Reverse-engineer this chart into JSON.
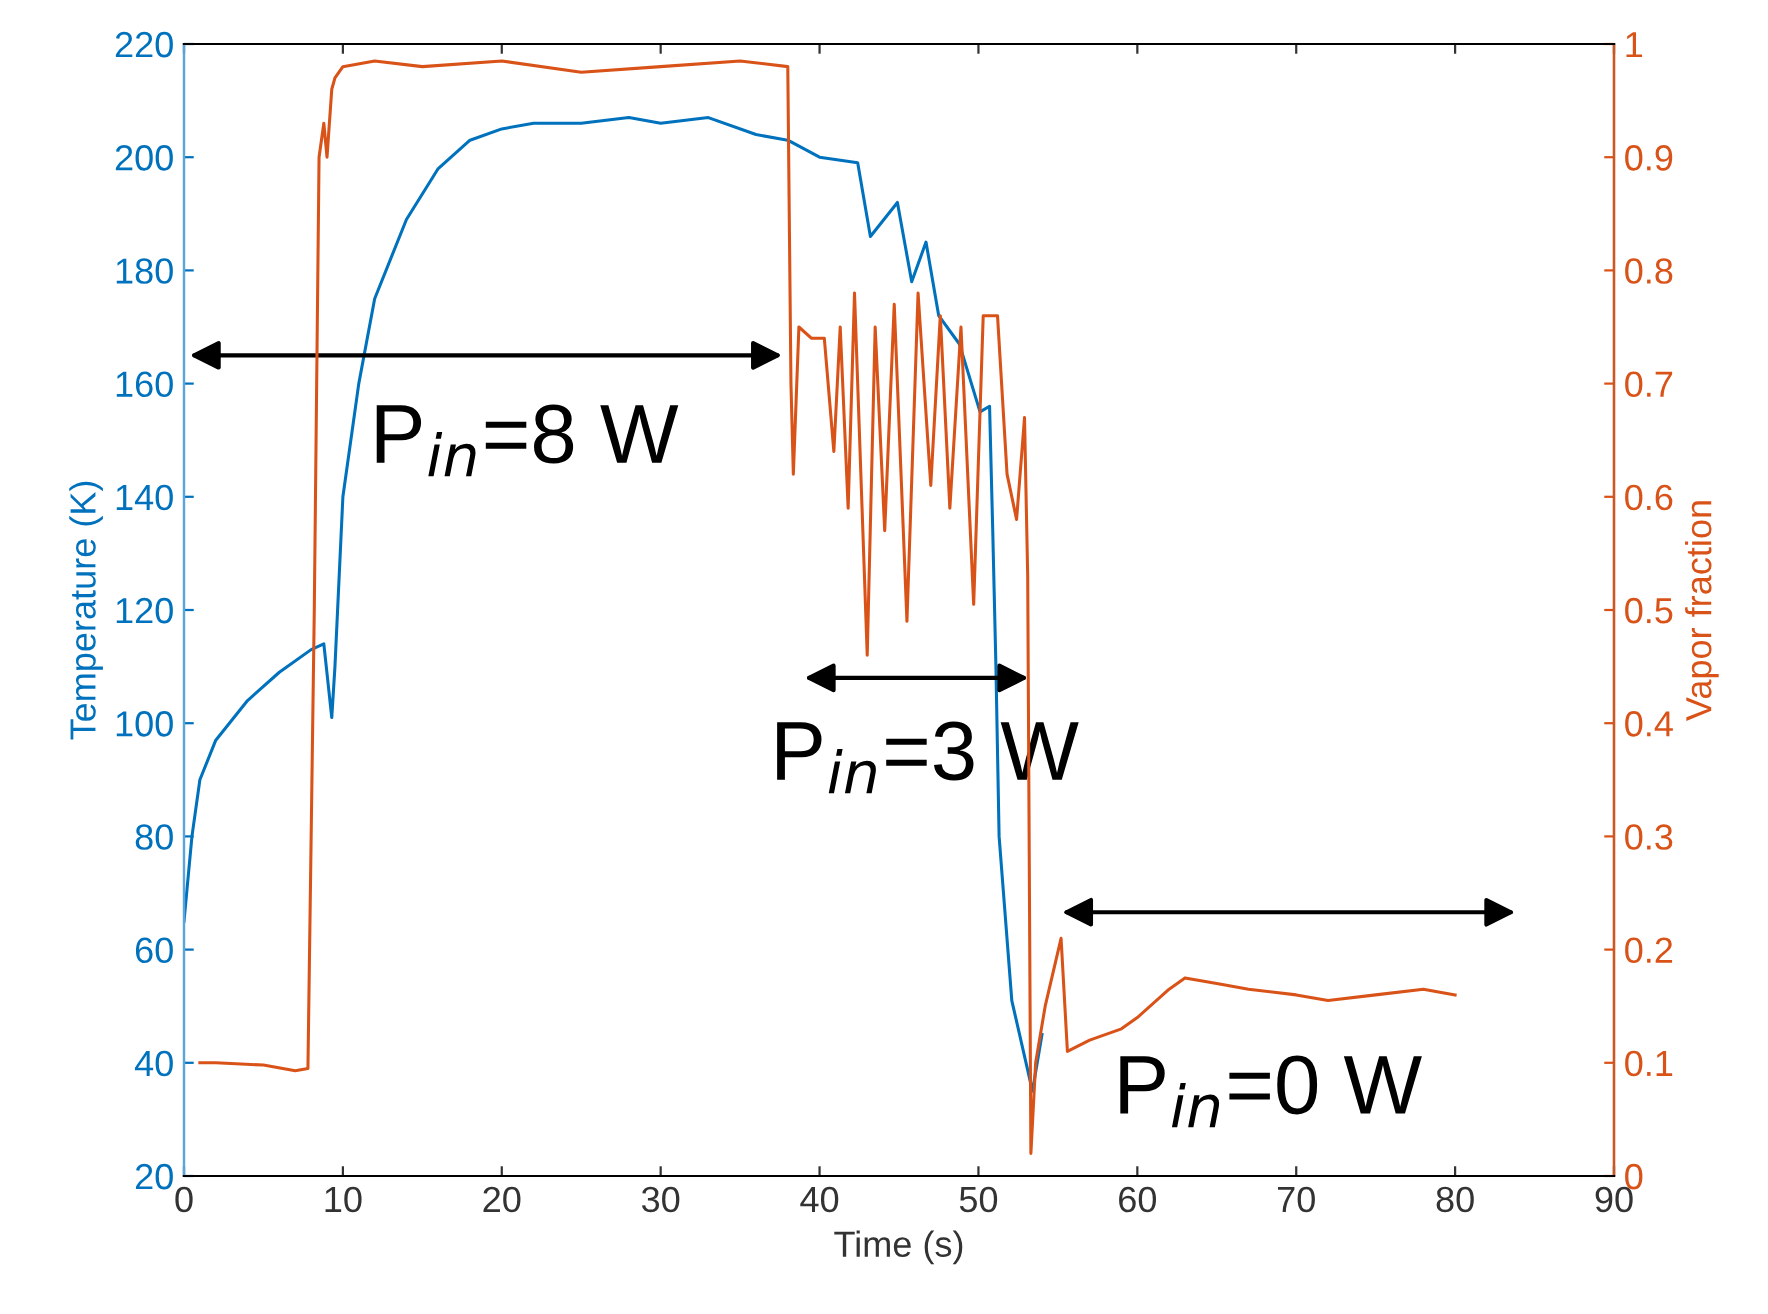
{
  "chart_data": {
    "type": "line",
    "xlabel": "Time (s)",
    "ylabel": "Temperature (K)",
    "y2label": "Vapor fraction",
    "xlim": [
      0,
      90
    ],
    "xticks": [
      0,
      10,
      20,
      30,
      40,
      50,
      60,
      70,
      80,
      90
    ],
    "ylim": [
      20,
      220
    ],
    "yticks": [
      20,
      40,
      60,
      80,
      100,
      120,
      140,
      160,
      180,
      200,
      220
    ],
    "y2lim": [
      0,
      1
    ],
    "y2ticks": [
      0,
      0.1,
      0.2,
      0.3,
      0.4,
      0.5,
      0.6,
      0.7,
      0.8,
      0.9,
      1
    ],
    "grid": false,
    "legend": false,
    "marker": "none",
    "line_style": "solid",
    "series": [
      {
        "color": "#0072bd",
        "x": [
          0,
          0.5,
          1,
          2,
          4,
          6,
          8,
          8.8,
          9.3,
          9.5,
          10,
          11,
          12,
          14,
          16,
          18,
          20,
          22,
          25,
          28,
          30,
          33,
          36,
          38,
          40,
          42.4,
          43.2,
          44.9,
          45.8,
          46.7,
          47.5,
          48.8,
          50.1,
          50.7,
          50.9,
          51.1,
          51.3,
          52.1,
          53.4,
          54
        ],
        "values": [
          65,
          80,
          90,
          97,
          104,
          109,
          113,
          114,
          101,
          110,
          140,
          160,
          175,
          189,
          198,
          203,
          205,
          206,
          206,
          207,
          206,
          207,
          204,
          203,
          200,
          199,
          186,
          192,
          178,
          185,
          172,
          167,
          155,
          156,
          134,
          110,
          80,
          51,
          35,
          45
        ]
      },
      {
        "color": "#d95319",
        "axis": "y2",
        "x": [
          1,
          2,
          5,
          7,
          7.8,
          8.2,
          8.5,
          8.8,
          9,
          9.3,
          9.5,
          10,
          12,
          15,
          20,
          25,
          30,
          35,
          38,
          38.2,
          38.35,
          38.7,
          39.5,
          40.3,
          40.9,
          41.3,
          41.8,
          42.2,
          43.0,
          43.5,
          44.1,
          44.7,
          45.5,
          46.2,
          47.0,
          47.6,
          48.2,
          48.9,
          49.7,
          50.3,
          51.2,
          51.8,
          52.4,
          52.9,
          53.1,
          53.3,
          53.6,
          54.2,
          55.2,
          55.6,
          57,
          59,
          60,
          62,
          63,
          65,
          67,
          70,
          72,
          75,
          78,
          80
        ],
        "values": [
          0.1,
          0.1,
          0.098,
          0.093,
          0.095,
          0.5,
          0.9,
          0.93,
          0.9,
          0.96,
          0.97,
          0.98,
          0.985,
          0.98,
          0.985,
          0.975,
          0.98,
          0.985,
          0.98,
          0.7,
          0.62,
          0.75,
          0.74,
          0.74,
          0.64,
          0.75,
          0.59,
          0.78,
          0.46,
          0.75,
          0.57,
          0.77,
          0.49,
          0.78,
          0.61,
          0.76,
          0.59,
          0.75,
          0.505,
          0.76,
          0.76,
          0.62,
          0.58,
          0.67,
          0.53,
          0.02,
          0.1,
          0.15,
          0.21,
          0.11,
          0.12,
          0.13,
          0.14,
          0.165,
          0.175,
          0.17,
          0.165,
          0.16,
          0.155,
          0.16,
          0.165,
          0.16
        ]
      }
    ],
    "annotations": [
      {
        "text": "P$_{in}$=8 W",
        "x": 38,
        "y": 165
      },
      {
        "text": "P$_{in}$=3 W",
        "x": 53.5,
        "y": 108
      },
      "P$_{in}$=0 W"
    ]
  }
}
